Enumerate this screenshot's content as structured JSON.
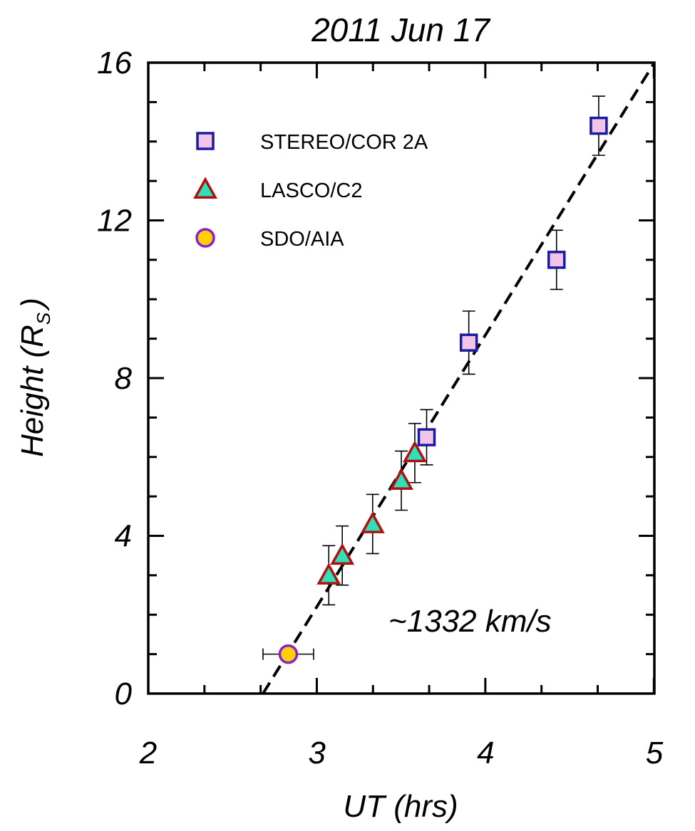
{
  "chart_data": {
    "type": "scatter",
    "title": "2011 Jun 17",
    "xlabel": "UT (hrs)",
    "ylabel_main": "Height (R",
    "ylabel_sub": "S",
    "ylabel_close": ")",
    "xlim": [
      2,
      5
    ],
    "ylim": [
      0,
      16
    ],
    "xticks": [
      2,
      3,
      4,
      5
    ],
    "xtick_labels": [
      "2",
      "3",
      "4",
      "5"
    ],
    "yticks": [
      0,
      4,
      8,
      12,
      16
    ],
    "ytick_labels": [
      "0",
      "4",
      "8",
      "12",
      "16"
    ],
    "x_minor_step": 0.333,
    "y_minor_step": 1,
    "annotation": "~1332 km/s",
    "fit_line": {
      "x": [
        2.68,
        5.0
      ],
      "y": [
        0.0,
        16.0
      ],
      "style": "dashed"
    },
    "series": [
      {
        "name": "STEREO/COR 2A",
        "marker": "square",
        "fill": "#f3c4ea",
        "edge": "#1a1aa0",
        "points": [
          {
            "x": 3.65,
            "y": 6.5,
            "yerr": 0.7
          },
          {
            "x": 3.9,
            "y": 8.9,
            "yerr": 0.8
          },
          {
            "x": 4.42,
            "y": 11.0,
            "yerr": 0.75
          },
          {
            "x": 4.67,
            "y": 14.4,
            "yerr": 0.75
          }
        ]
      },
      {
        "name": "LASCO/C2",
        "marker": "triangle",
        "fill": "#2fe0b8",
        "edge": "#b01010",
        "points": [
          {
            "x": 3.07,
            "y": 3.0,
            "yerr": 0.75
          },
          {
            "x": 3.15,
            "y": 3.5,
            "yerr": 0.75
          },
          {
            "x": 3.33,
            "y": 4.3,
            "yerr": 0.75
          },
          {
            "x": 3.5,
            "y": 5.4,
            "yerr": 0.75
          },
          {
            "x": 3.58,
            "y": 6.1,
            "yerr": 0.75
          }
        ]
      },
      {
        "name": "SDO/AIA",
        "marker": "circle",
        "fill": "#ffd000",
        "edge": "#8a1fd0",
        "points": [
          {
            "x": 2.83,
            "y": 1.0,
            "xerr": 0.15
          }
        ]
      }
    ],
    "legend_placement": "top-left"
  }
}
